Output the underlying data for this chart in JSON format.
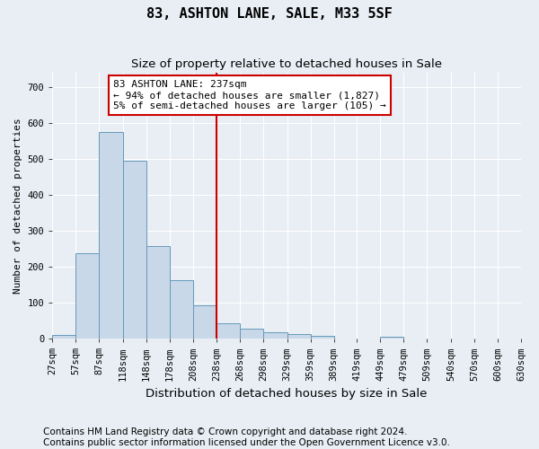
{
  "title": "83, ASHTON LANE, SALE, M33 5SF",
  "subtitle": "Size of property relative to detached houses in Sale",
  "xlabel": "Distribution of detached houses by size in Sale",
  "ylabel": "Number of detached properties",
  "bin_edges": [
    27,
    57,
    87,
    118,
    148,
    178,
    208,
    238,
    268,
    298,
    329,
    359,
    389,
    419,
    449,
    479,
    509,
    540,
    570,
    600,
    630
  ],
  "bar_heights": [
    10,
    237,
    573,
    495,
    258,
    163,
    93,
    43,
    28,
    18,
    14,
    8,
    0,
    0,
    5,
    0,
    0,
    0,
    0,
    0
  ],
  "bar_color": "#c8d8e8",
  "bar_edge_color": "#6699bb",
  "vline_x": 238,
  "vline_color": "#cc0000",
  "annotation_text": "83 ASHTON LANE: 237sqm\n← 94% of detached houses are smaller (1,827)\n5% of semi-detached houses are larger (105) →",
  "annotation_box_color": "white",
  "annotation_box_edge_color": "#cc0000",
  "bg_color": "#e8eef4",
  "plot_bg_color": "#e8eef4",
  "tick_labels": [
    "27sqm",
    "57sqm",
    "87sqm",
    "118sqm",
    "148sqm",
    "178sqm",
    "208sqm",
    "238sqm",
    "268sqm",
    "298sqm",
    "329sqm",
    "359sqm",
    "389sqm",
    "419sqm",
    "449sqm",
    "479sqm",
    "509sqm",
    "540sqm",
    "570sqm",
    "600sqm",
    "630sqm"
  ],
  "ylim": [
    0,
    740
  ],
  "yticks": [
    0,
    100,
    200,
    300,
    400,
    500,
    600,
    700
  ],
  "footer_text": "Contains HM Land Registry data © Crown copyright and database right 2024.\nContains public sector information licensed under the Open Government Licence v3.0.",
  "title_fontsize": 11,
  "subtitle_fontsize": 9.5,
  "xlabel_fontsize": 9.5,
  "ylabel_fontsize": 8,
  "tick_fontsize": 7.5,
  "annot_fontsize": 8,
  "footer_fontsize": 7.5
}
